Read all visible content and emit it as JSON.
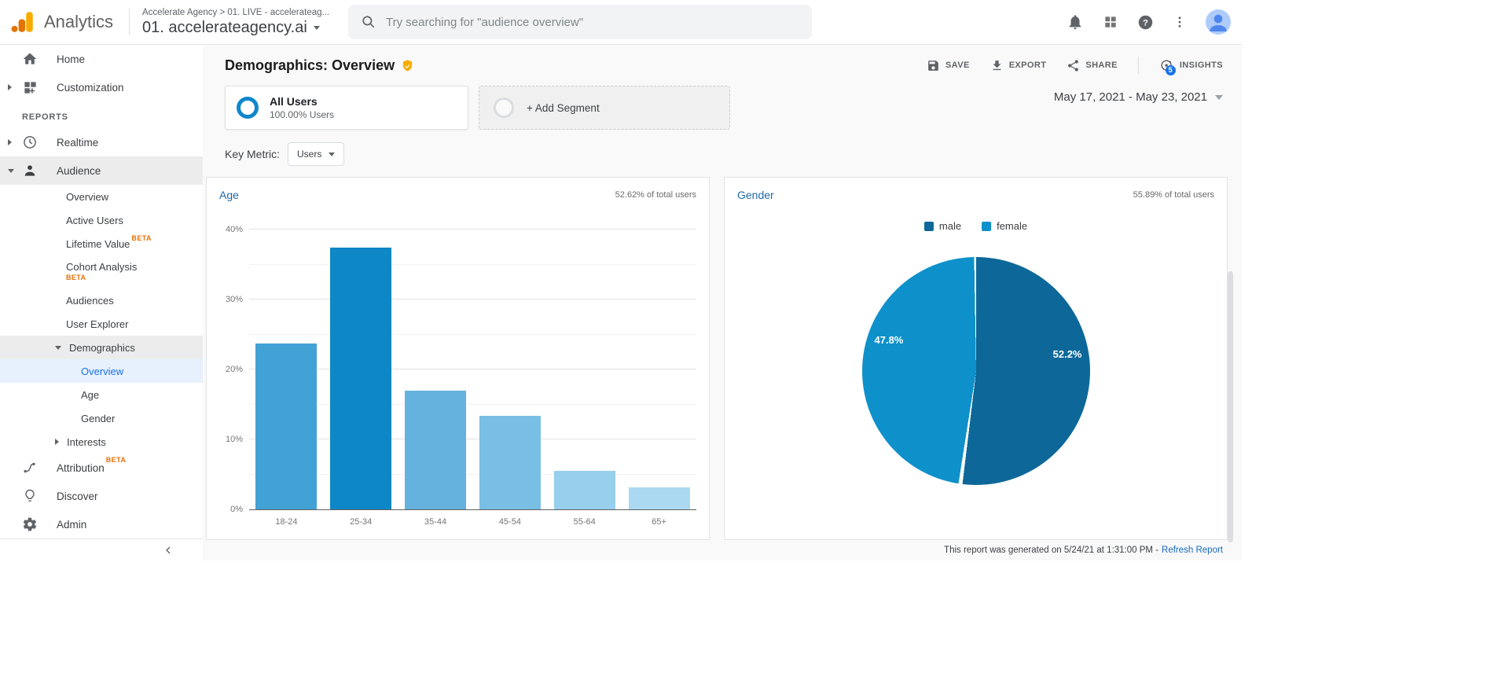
{
  "topbar": {
    "product": "Analytics",
    "breadcrumb": "Accelerate Agency > 01. LIVE - accelerateag...",
    "property_name": "01. accelerateagency.ai",
    "search_placeholder": "Try searching for \"audience overview\"",
    "right_icons": [
      "notifications-icon",
      "apps-grid-icon",
      "help-icon",
      "more-vert-icon",
      "avatar"
    ]
  },
  "sidebar": {
    "section_label": "REPORTS",
    "items": [
      {
        "slug": "home",
        "label": "Home",
        "icon": "home-icon"
      },
      {
        "slug": "customization",
        "label": "Customization",
        "icon": "customization-icon",
        "arrow": "right"
      },
      {
        "section": "REPORTS"
      },
      {
        "slug": "realtime",
        "label": "Realtime",
        "icon": "clock-icon",
        "arrow": "right"
      },
      {
        "slug": "audience",
        "label": "Audience",
        "icon": "person-icon",
        "arrow": "down",
        "highlight": true
      },
      {
        "slug": "audience-overview",
        "label": "Overview",
        "level": 1
      },
      {
        "slug": "active-users",
        "label": "Active Users",
        "level": 1
      },
      {
        "slug": "lifetime-value",
        "label": "Lifetime Value",
        "level": 1,
        "badge": "BETA",
        "badge_style": "sup"
      },
      {
        "slug": "cohort-analysis",
        "label": "Cohort Analysis",
        "level": 1,
        "badge": "BETA",
        "badge_style": "below"
      },
      {
        "slug": "audiences",
        "label": "Audiences",
        "level": 1
      },
      {
        "slug": "user-explorer",
        "label": "User Explorer",
        "level": 1
      },
      {
        "slug": "demographics",
        "label": "Demographics",
        "level": 1,
        "arrow": "down",
        "highlight": true
      },
      {
        "slug": "demographics-overview",
        "label": "Overview",
        "level": 2,
        "selected": true
      },
      {
        "slug": "demographics-age",
        "label": "Age",
        "level": 2
      },
      {
        "slug": "demographics-gender",
        "label": "Gender",
        "level": 2
      },
      {
        "slug": "interests",
        "label": "Interests",
        "level": 1,
        "arrow": "right"
      },
      {
        "slug": "attribution",
        "label": "Attribution",
        "icon": "attribution-icon",
        "badge": "BETA",
        "badge_style": "sup"
      },
      {
        "slug": "discover",
        "label": "Discover",
        "icon": "lightbulb-icon"
      },
      {
        "slug": "admin",
        "label": "Admin",
        "icon": "gear-icon"
      }
    ]
  },
  "header": {
    "title": "Demographics: Overview",
    "badge_icon": "shield-check-icon",
    "actions": [
      {
        "slug": "save",
        "label": "SAVE",
        "icon": "save-icon"
      },
      {
        "slug": "export",
        "label": "EXPORT",
        "icon": "export-icon"
      },
      {
        "slug": "share",
        "label": "SHARE",
        "icon": "share-icon"
      },
      {
        "slug": "insights",
        "label": "INSIGHTS",
        "icon": "insights-icon",
        "badge": "5",
        "divider_before": true
      }
    ]
  },
  "segments": {
    "all_users": {
      "title": "All Users",
      "subtitle": "100.00% Users"
    },
    "add_segment": "+ Add Segment",
    "date_range": "May 17, 2021 - May 23, 2021"
  },
  "key_metric": {
    "label": "Key Metric:",
    "value": "Users"
  },
  "chart_data": [
    {
      "type": "bar",
      "title": "Age",
      "subtitle": "52.62% of total users",
      "categories": [
        "18-24",
        "25-34",
        "35-44",
        "45-54",
        "55-64",
        "65+"
      ],
      "values": [
        23.7,
        37.4,
        17.0,
        13.4,
        5.5,
        3.1
      ],
      "bar_colors": [
        "#42a1d5",
        "#0e87c6",
        "#66b2de",
        "#79bfe5",
        "#97cfec",
        "#abd9f1"
      ],
      "xlabel": "",
      "ylabel": "",
      "ylim": [
        0,
        40
      ],
      "ytick_labels": [
        "0%",
        "10%",
        "20%",
        "30%",
        "40%"
      ],
      "ytick_values": [
        0,
        10,
        20,
        30,
        40
      ],
      "minor_grid_step": 5,
      "grid": true
    },
    {
      "type": "pie",
      "title": "Gender",
      "subtitle": "55.89% of total users",
      "labels": [
        "male",
        "female"
      ],
      "values": [
        52.2,
        47.8
      ],
      "slice_labels": [
        "52.2%",
        "47.8%"
      ],
      "colors": [
        "#0d6899",
        "#0e91cb"
      ],
      "legend_position": "top",
      "start_angle_deg": 0
    }
  ],
  "footer": {
    "text": "This report was generated on 5/24/21 at 1:31:00 PM - ",
    "link": "Refresh Report"
  }
}
